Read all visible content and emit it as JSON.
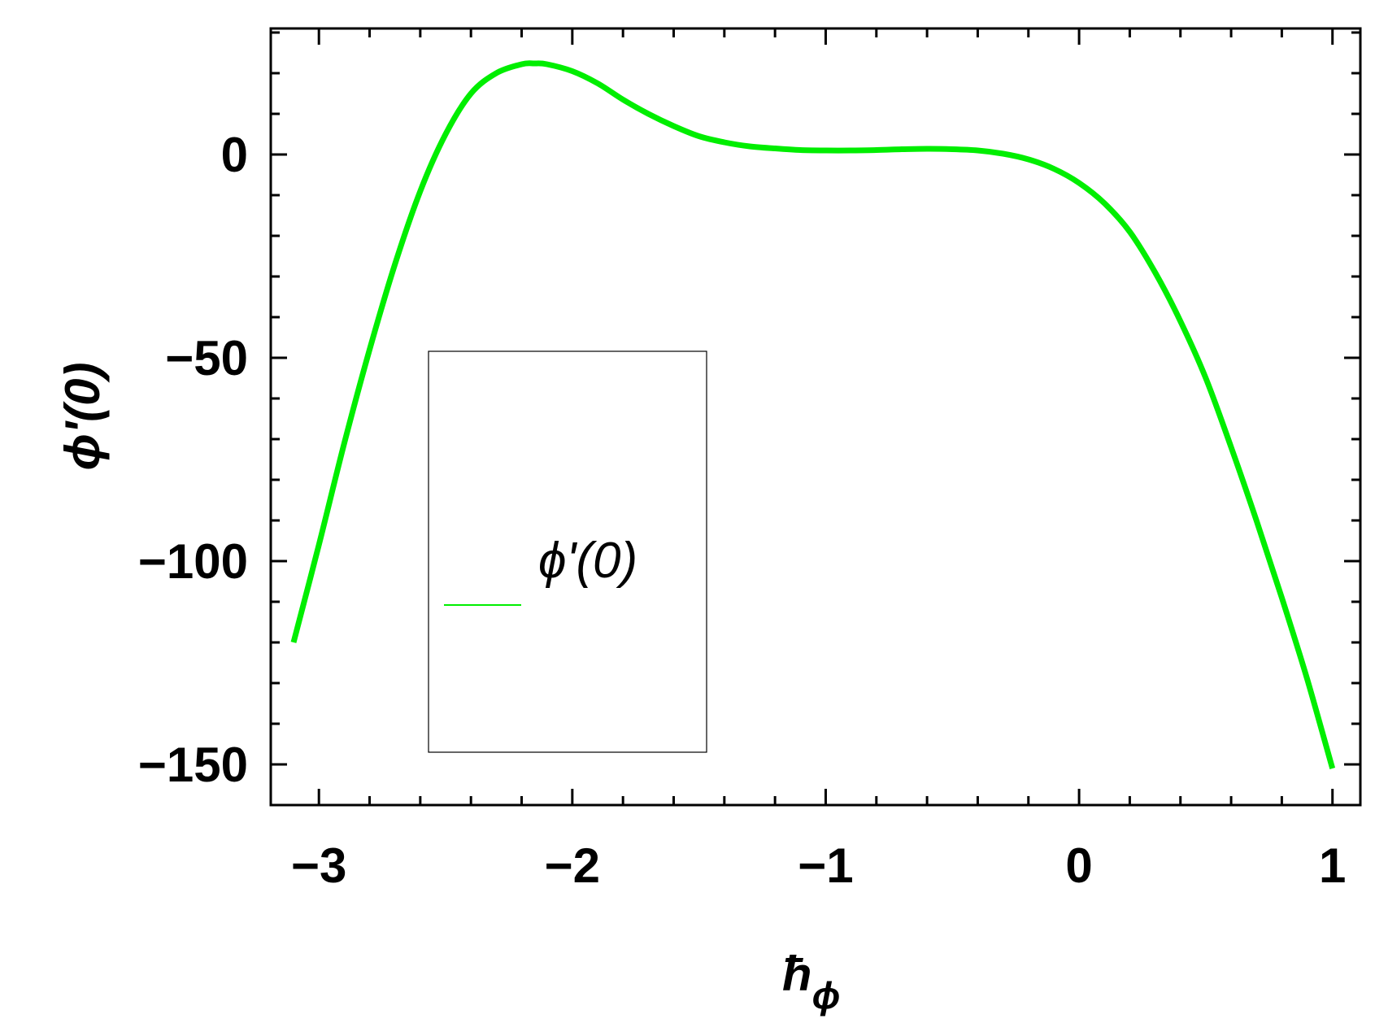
{
  "chart_data": {
    "type": "line",
    "xlabel_main": "ħ",
    "xlabel_sub": "ϕ",
    "ylabel": "ϕ'(0)",
    "x_ticks": [
      {
        "value": -3,
        "label": "−3"
      },
      {
        "value": -2,
        "label": "−2"
      },
      {
        "value": -1,
        "label": "−1"
      },
      {
        "value": 0,
        "label": "0"
      },
      {
        "value": 1,
        "label": "1"
      }
    ],
    "y_ticks": [
      {
        "value": 0,
        "label": "0"
      },
      {
        "value": -50,
        "label": "−50"
      },
      {
        "value": -100,
        "label": "−100"
      },
      {
        "value": -150,
        "label": "−150"
      }
    ],
    "xlim": [
      -3.19,
      1.11
    ],
    "ylim": [
      -160,
      31
    ],
    "grid": false,
    "legend_position": "center-left",
    "series": [
      {
        "name": "ϕ'(0)",
        "color": "#00ee00",
        "x": [
          -3.1,
          -3.0,
          -2.9,
          -2.8,
          -2.7,
          -2.6,
          -2.5,
          -2.4,
          -2.3,
          -2.2,
          -2.15,
          -2.1,
          -2.0,
          -1.9,
          -1.8,
          -1.7,
          -1.6,
          -1.5,
          -1.4,
          -1.3,
          -1.2,
          -1.1,
          -1.0,
          -0.9,
          -0.8,
          -0.7,
          -0.6,
          -0.5,
          -0.4,
          -0.3,
          -0.2,
          -0.1,
          0.0,
          0.1,
          0.2,
          0.3,
          0.4,
          0.5,
          0.6,
          0.7,
          0.8,
          0.9,
          1.0
        ],
        "y": [
          -120,
          -96,
          -71,
          -48,
          -27,
          -9,
          5,
          15,
          20,
          22.2,
          22.4,
          22.2,
          20.5,
          17.5,
          13.5,
          10,
          7,
          4.5,
          3,
          2,
          1.5,
          1.1,
          1.0,
          1.0,
          1.1,
          1.3,
          1.4,
          1.3,
          1.0,
          0.2,
          -1.2,
          -3.5,
          -7,
          -12,
          -19,
          -29,
          -41,
          -55,
          -72,
          -90,
          -109,
          -129,
          -151
        ]
      }
    ]
  }
}
